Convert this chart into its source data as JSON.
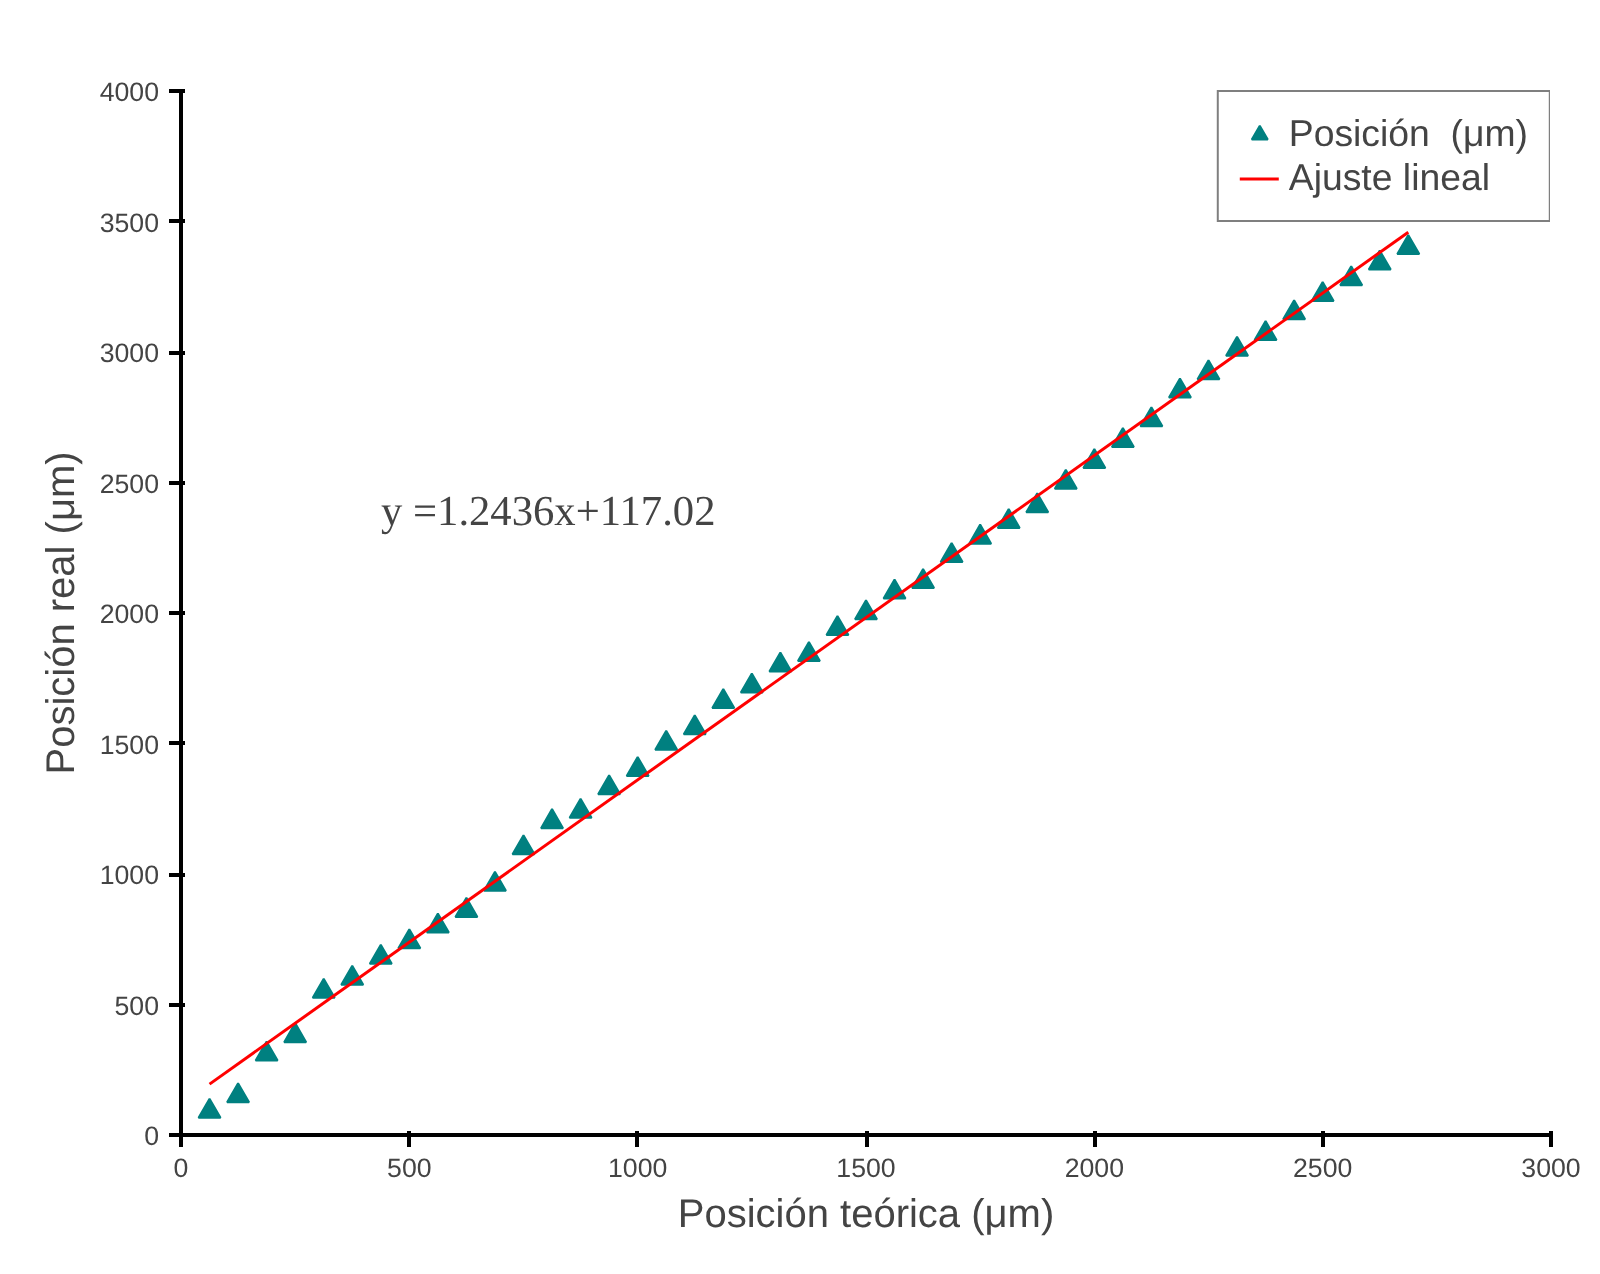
{
  "chart_data": {
    "type": "scatter",
    "xlabel": "Posición teórica (μm)",
    "ylabel": "Posición real (μm)",
    "x": [
      62.5,
      125,
      187.5,
      250,
      312.5,
      375,
      437.5,
      500,
      562.5,
      625,
      687.5,
      750,
      812.5,
      875,
      937.5,
      1000,
      1062.5,
      1125,
      1187.5,
      1250,
      1312.5,
      1375,
      1437.5,
      1500,
      1562.5,
      1625,
      1687.5,
      1750,
      1812.5,
      1875,
      1937.5,
      2000,
      2062.5,
      2125,
      2187.5,
      2250,
      2312.5,
      2375,
      2437.5,
      2500,
      2562.5,
      2625,
      2687.5
    ],
    "series": [
      {
        "name": "Posición  (μm)",
        "color": "#008080",
        "marker": "triangle",
        "values": [
          90,
          150,
          310,
          380,
          550,
          600,
          680,
          740,
          800,
          860,
          960,
          1100,
          1200,
          1240,
          1330,
          1400,
          1500,
          1560,
          1660,
          1720,
          1800,
          1840,
          1940,
          2000,
          2080,
          2120,
          2220,
          2290,
          2350,
          2410,
          2500,
          2580,
          2660,
          2740,
          2850,
          2920,
          3010,
          3070,
          3150,
          3220,
          3280,
          3340,
          3400
        ]
      },
      {
        "name": "Ajuste lineal",
        "type": "line",
        "color": "#ff0000",
        "x": [
          62.5,
          2687.5
        ],
        "values": [
          195,
          3459
        ]
      }
    ],
    "annotations": [
      "y =1.2436x+117.02"
    ],
    "xlim": [
      0,
      3000
    ],
    "ylim": [
      0,
      4000
    ],
    "xticks": [
      0,
      500,
      1000,
      1500,
      2000,
      2500,
      3000
    ],
    "yticks": [
      0,
      500,
      1000,
      1500,
      2000,
      2500,
      3000,
      3500,
      4000
    ],
    "grid": false,
    "legend": "top right"
  }
}
